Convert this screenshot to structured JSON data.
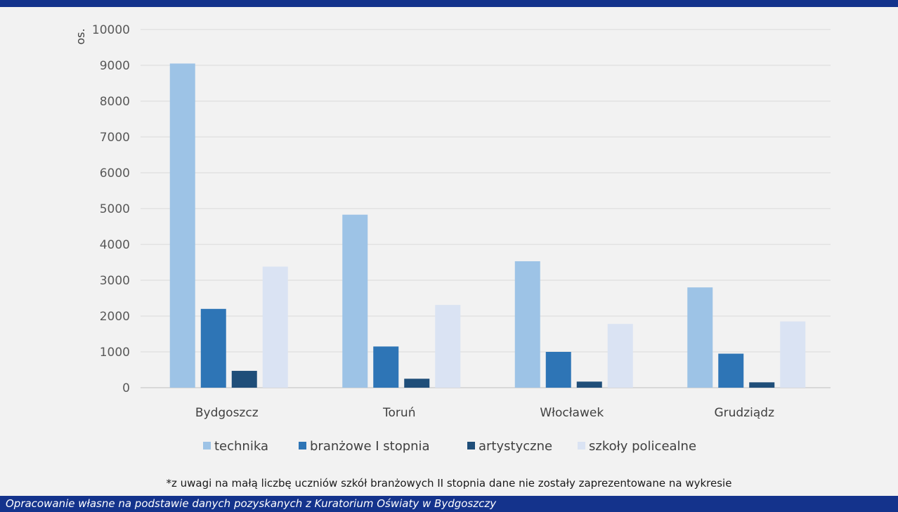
{
  "chart_data": {
    "type": "bar",
    "categories": [
      "Bydgoszcz",
      "Toruń",
      "Włocławek",
      "Grudziądz"
    ],
    "series": [
      {
        "name": "technika",
        "values": [
          9050,
          4830,
          3530,
          2800
        ],
        "color": "#9dc3e6"
      },
      {
        "name": "branżowe I stopnia",
        "values": [
          2200,
          1150,
          1000,
          950
        ],
        "color": "#2e75b6"
      },
      {
        "name": "artystyczne",
        "values": [
          470,
          250,
          170,
          150
        ],
        "color": "#1f4e79"
      },
      {
        "name": "szkoły policealne",
        "values": [
          3380,
          2310,
          1780,
          1850
        ],
        "color": "#dae3f3"
      }
    ],
    "ylabel": "os.",
    "ylim": [
      0,
      10000
    ],
    "yticks": [
      0,
      1000,
      2000,
      3000,
      4000,
      5000,
      6000,
      7000,
      8000,
      9000,
      10000
    ],
    "grid": true,
    "legend": "bottom"
  },
  "footnote": "*z uwagi na małą liczbę uczniów szkół branżowych II stopnia dane nie zostały zaprezentowane na wykresie",
  "source": "Opracowanie własne na podstawie danych pozyskanych z Kuratorium Oświaty w Bydgoszczy",
  "colors": {
    "brand_bar": "#14338c",
    "grid": "#d9d9d9",
    "background": "#f2f2f2"
  }
}
